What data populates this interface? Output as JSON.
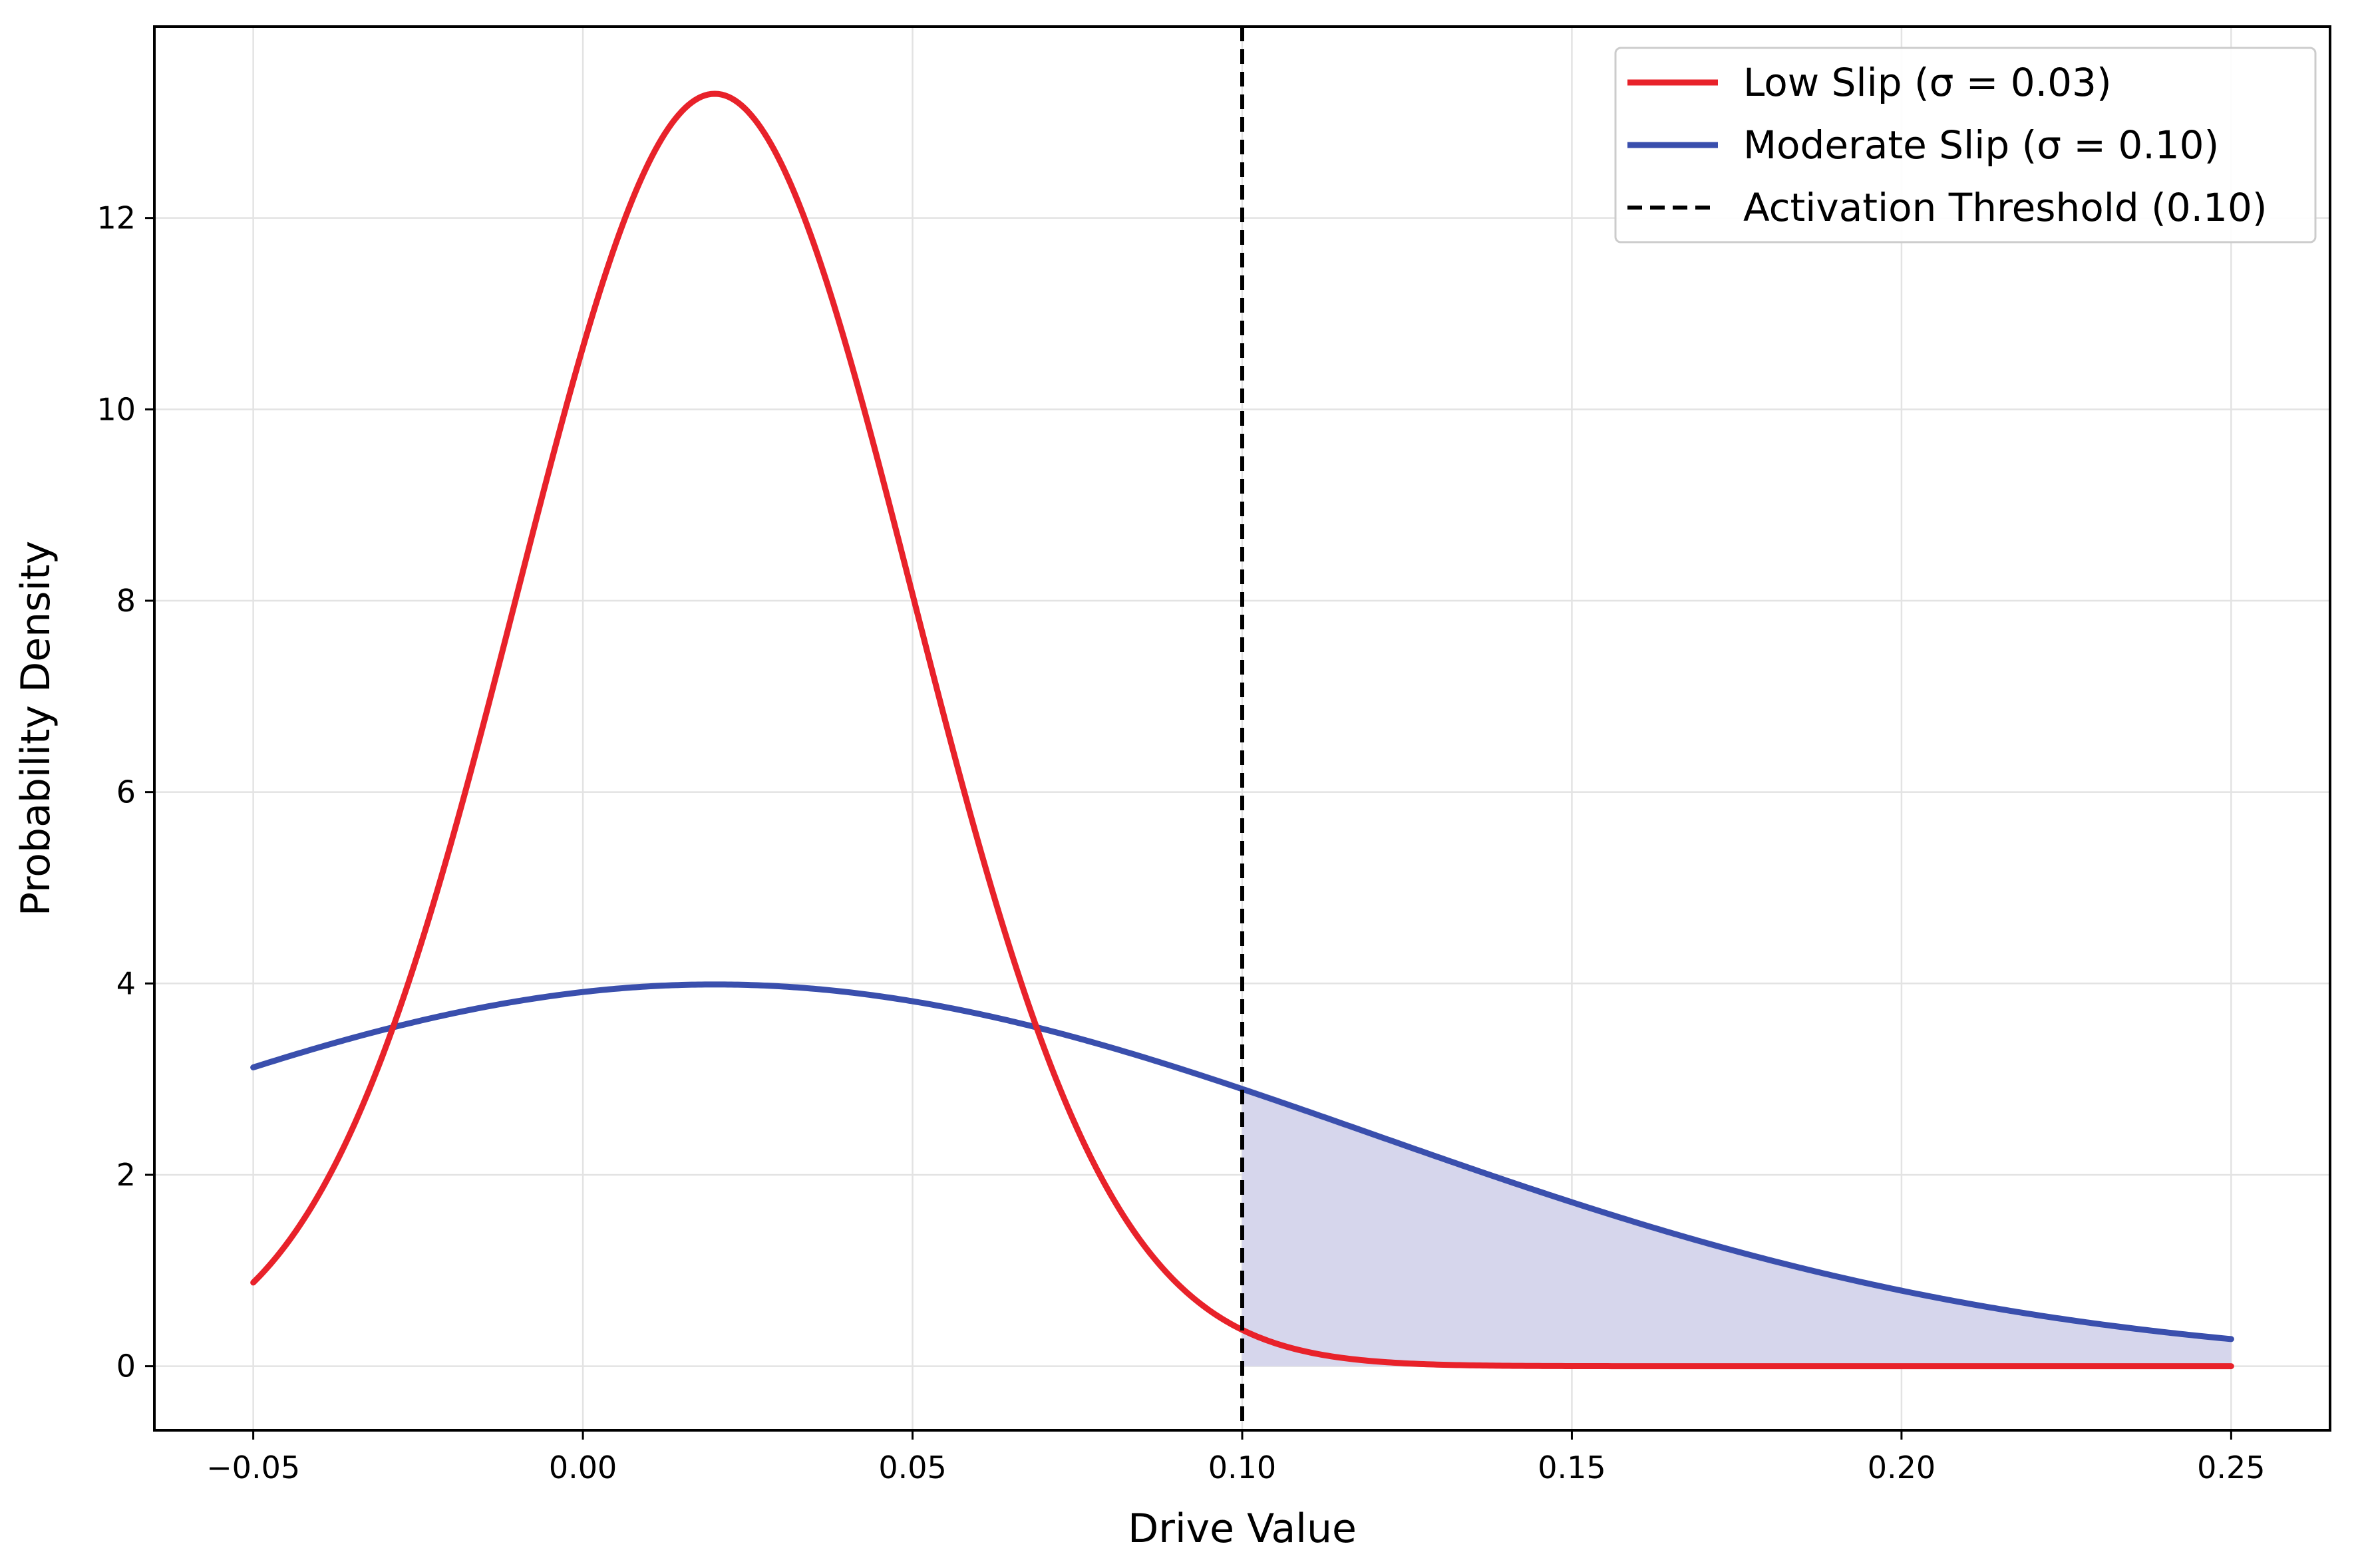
{
  "chart_data": {
    "type": "line",
    "title": "",
    "xlabel": "Drive Value",
    "ylabel": "Probability Density",
    "xlim": [
      -0.065,
      0.265
    ],
    "ylim": [
      -0.67,
      14.0
    ],
    "grid": true,
    "legend_position": "top-right",
    "x_ticks": [
      -0.05,
      0.0,
      0.05,
      0.1,
      0.15,
      0.2,
      0.25
    ],
    "x_tick_labels": [
      "−0.05",
      "0.00",
      "0.05",
      "0.10",
      "0.15",
      "0.20",
      "0.25"
    ],
    "y_ticks": [
      0,
      2,
      4,
      6,
      8,
      10,
      12
    ],
    "y_tick_labels": [
      "0",
      "2",
      "4",
      "6",
      "8",
      "10",
      "12"
    ],
    "series": [
      {
        "name": "Low Slip (σ = 0.03)",
        "kind": "normal_pdf",
        "mu": 0.02,
        "sigma": 0.03,
        "x_range": [
          -0.05,
          0.25
        ],
        "color": "#e8222a"
      },
      {
        "name": "Moderate Slip (σ = 0.10)",
        "kind": "normal_pdf",
        "mu": 0.02,
        "sigma": 0.1,
        "x_range": [
          -0.05,
          0.25
        ],
        "color": "#3a4fad"
      }
    ],
    "threshold": {
      "name": "Activation Threshold (0.10)",
      "x": 0.1,
      "color": "#000000",
      "style": "dashed"
    },
    "shaded_region": {
      "series": "Moderate Slip (σ = 0.10)",
      "x_from": 0.1,
      "x_to": 0.25,
      "color": "#d6d6ec"
    }
  }
}
